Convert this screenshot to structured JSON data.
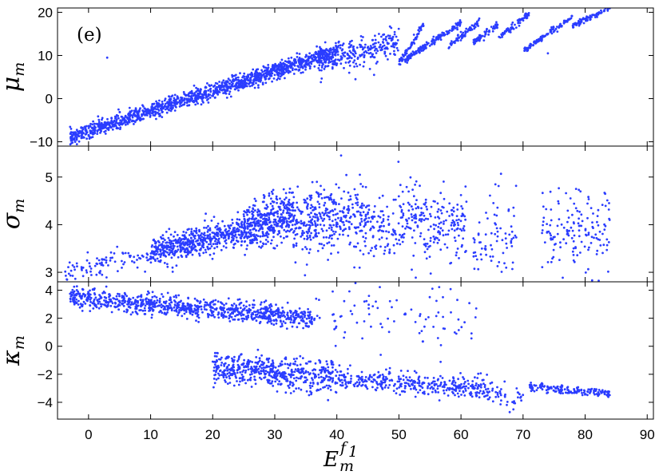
{
  "figure": {
    "panel_tag": "(e)",
    "xlabel": {
      "base": "E",
      "sub": "m",
      "sup": "f",
      "supsub": "1"
    }
  },
  "chart_data": [
    {
      "type": "scatter",
      "name": "mu_m",
      "ylabel": {
        "symbol": "μ",
        "sub": "m"
      },
      "xlim": [
        -5,
        91
      ],
      "ylim": [
        -11,
        21
      ],
      "yticks": [
        -10,
        0,
        10,
        20
      ],
      "xticks": [
        0,
        10,
        20,
        30,
        40,
        50,
        60,
        70,
        80,
        90
      ],
      "show_xtick_labels": false,
      "color": "#2b3dff",
      "generator": "mu",
      "segments": [
        {
          "x0": -3,
          "x1": 40,
          "y0": -9,
          "y1": 11,
          "spread": 0.9,
          "n": 1400
        },
        {
          "x0": 37,
          "x1": 50,
          "y0": 9,
          "y1": 13,
          "spread": 1.6,
          "n": 260
        },
        {
          "x0": 50,
          "x1": 54,
          "y0": 8,
          "y1": 17,
          "spread": 0.5,
          "n": 70
        },
        {
          "x0": 51,
          "x1": 60,
          "y0": 9,
          "y1": 17.5,
          "spread": 0.4,
          "n": 160
        },
        {
          "x0": 58,
          "x1": 63,
          "y0": 12,
          "y1": 18,
          "spread": 0.5,
          "n": 70
        },
        {
          "x0": 62,
          "x1": 66,
          "y0": 13,
          "y1": 17,
          "spread": 0.4,
          "n": 60
        },
        {
          "x0": 66,
          "x1": 71,
          "y0": 14,
          "y1": 19.5,
          "spread": 0.4,
          "n": 70
        },
        {
          "x0": 70,
          "x1": 78,
          "y0": 11,
          "y1": 19,
          "spread": 0.3,
          "n": 110
        },
        {
          "x0": 78,
          "x1": 84,
          "y0": 17,
          "y1": 21,
          "spread": 0.3,
          "n": 90
        }
      ],
      "outliers": [
        [
          3,
          9.5
        ],
        [
          17,
          3
        ],
        [
          42,
          6
        ],
        [
          46,
          5.5
        ],
        [
          74,
          10.5
        ],
        [
          44,
          13.5
        ],
        [
          43,
          4.5
        ]
      ]
    },
    {
      "type": "scatter",
      "name": "sigma_m",
      "ylabel": {
        "symbol": "σ",
        "sub": "m"
      },
      "xlim": [
        -5,
        91
      ],
      "ylim": [
        2.8,
        5.65
      ],
      "yticks": [
        3,
        4,
        5
      ],
      "xticks": [
        0,
        10,
        20,
        30,
        40,
        50,
        60,
        70,
        80,
        90
      ],
      "show_xtick_labels": false,
      "color": "#2b3dff",
      "generator": "sigma",
      "clusters": [
        {
          "x0": -4,
          "x1": 10,
          "ymean0": 3.05,
          "ymean1": 3.35,
          "spread": 0.12,
          "n": 90
        },
        {
          "x0": 10,
          "x1": 25,
          "ymean0": 3.4,
          "ymean1": 3.9,
          "spread": 0.15,
          "n": 520
        },
        {
          "x0": 25,
          "x1": 33,
          "ymean0": 3.9,
          "ymean1": 4.25,
          "spread": 0.25,
          "n": 420
        },
        {
          "x0": 33,
          "x1": 45,
          "ymean0": 4.0,
          "ymean1": 4.2,
          "spread": 0.35,
          "n": 360
        },
        {
          "x0": 45,
          "x1": 61,
          "ymean0": 4.0,
          "ymean1": 4.0,
          "spread": 0.4,
          "n": 300
        },
        {
          "x0": 62,
          "x1": 69,
          "ymean0": 3.6,
          "ymean1": 3.8,
          "spread": 0.45,
          "n": 80
        },
        {
          "x0": 73,
          "x1": 84,
          "ymean0": 3.8,
          "ymean1": 3.9,
          "spread": 0.45,
          "n": 150
        }
      ]
    },
    {
      "type": "scatter",
      "name": "kappa_m",
      "ylabel": {
        "symbol": "κ",
        "sub": "m"
      },
      "xlim": [
        -5,
        91
      ],
      "ylim": [
        -5.2,
        4.6
      ],
      "yticks": [
        -4,
        -2,
        0,
        2,
        4
      ],
      "xticks": [
        0,
        10,
        20,
        30,
        40,
        50,
        60,
        70,
        80,
        90
      ],
      "xtick_labels": [
        "0",
        "10",
        "20",
        "30",
        "40",
        "50",
        "60",
        "70",
        "80",
        "90"
      ],
      "show_xtick_labels": true,
      "color": "#2b3dff",
      "generator": "kappa",
      "upper": [
        {
          "x0": -3,
          "x1": 36,
          "y0": 3.5,
          "y1": 2.0,
          "spread": 0.35,
          "n": 900
        },
        {
          "x0": 36,
          "x1": 63,
          "y0": 2.5,
          "y1": 2.0,
          "spread": 1.1,
          "n": 90
        }
      ],
      "lower": [
        {
          "x0": 20,
          "x1": 40,
          "y0": -1.5,
          "y1": -2.3,
          "spread": 0.55,
          "n": 520
        },
        {
          "x0": 40,
          "x1": 64,
          "y0": -2.3,
          "y1": -3.0,
          "spread": 0.4,
          "n": 360
        },
        {
          "x0": 64,
          "x1": 70,
          "y0": -3.2,
          "y1": -3.8,
          "spread": 0.4,
          "n": 50
        },
        {
          "x0": 71,
          "x1": 84,
          "y0": -2.9,
          "y1": -3.4,
          "spread": 0.15,
          "n": 160
        }
      ]
    }
  ]
}
